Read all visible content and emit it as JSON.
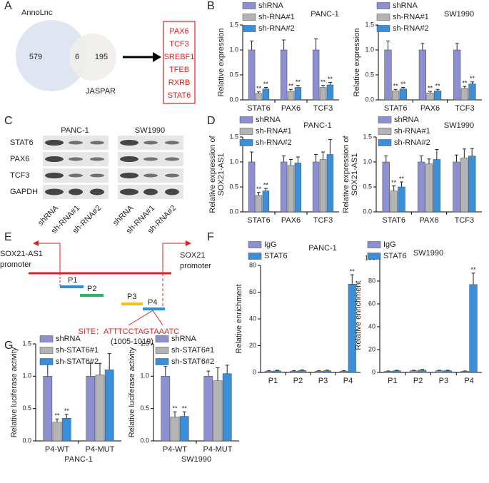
{
  "panel_labels": [
    "A",
    "B",
    "C",
    "D",
    "E",
    "F",
    "G"
  ],
  "venn": {
    "left": "AnnoLnc",
    "right": "JASPAR",
    "left_only": 579,
    "both": 6,
    "right_only": 195,
    "genes": [
      "PAX6",
      "TCF3",
      "SREBF1",
      "TFEB",
      "RXRB",
      "STAT6"
    ]
  },
  "blot": {
    "cells": [
      "PANC-1",
      "SW1990"
    ],
    "proteins": [
      "STAT6",
      "PAX6",
      "TCF3",
      "GAPDH"
    ],
    "lanes": [
      "shRNA",
      "sh-RNA#1",
      "sh-RNA#2"
    ]
  },
  "diagram": {
    "left_promoter": [
      "SOX21-AS1",
      "promoter"
    ],
    "right_promoter": [
      "SOX21",
      "promoter"
    ],
    "fragments": [
      "P1",
      "P2",
      "P3",
      "P4"
    ],
    "site_label": "SITE：",
    "site": "ATTTCCTAGTAAATC",
    "site_range": "(1005-1019)"
  },
  "chart_data": [
    {
      "type": "bar",
      "title": "PANC-1",
      "ylabel": [
        "Relative expression"
      ],
      "categories": [
        "STAT6",
        "PAX6",
        "TCF3"
      ],
      "series": [
        {
          "name": "shRNA",
          "color": "#8c8fd0",
          "values": [
            1.0,
            1.0,
            1.0
          ],
          "errors": [
            0.18,
            0.2,
            0.22
          ],
          "significance": [
            null,
            null,
            null
          ]
        },
        {
          "name": "sh-RNA#1",
          "color": "#b4b4b4",
          "values": [
            0.13,
            0.17,
            0.25
          ],
          "errors": [
            0.03,
            0.04,
            0.04
          ],
          "significance": [
            "**",
            "**",
            "**"
          ]
        },
        {
          "name": "sh-RNA#2",
          "color": "#3a8fd8",
          "values": [
            0.22,
            0.25,
            0.3
          ],
          "errors": [
            0.03,
            0.04,
            0.05
          ],
          "significance": [
            "**",
            "**",
            "**"
          ]
        }
      ],
      "ylim": [
        0,
        1.5
      ],
      "yticks": [
        {
          "value": 0,
          "label": "0.0"
        },
        {
          "value": 0.5,
          "label": "0.5"
        },
        {
          "value": 1.0,
          "label": "1.0"
        },
        {
          "value": 1.5,
          "label": "1.5"
        }
      ]
    },
    {
      "type": "bar",
      "title": "SW1990",
      "ylabel": [
        "Relative expression"
      ],
      "categories": [
        "STAT6",
        "PAX6",
        "TCF3"
      ],
      "series": [
        {
          "name": "shRNA",
          "color": "#8c8fd0",
          "values": [
            1.0,
            1.0,
            1.0
          ],
          "errors": [
            0.18,
            0.13,
            0.13
          ],
          "significance": [
            null,
            null,
            null
          ]
        },
        {
          "name": "sh-RNA#1",
          "color": "#b4b4b4",
          "values": [
            0.18,
            0.14,
            0.23
          ],
          "errors": [
            0.03,
            0.03,
            0.04
          ],
          "significance": [
            "**",
            "**",
            "**"
          ]
        },
        {
          "name": "sh-RNA#2",
          "color": "#3a8fd8",
          "values": [
            0.22,
            0.18,
            0.32
          ],
          "errors": [
            0.03,
            0.03,
            0.04
          ],
          "significance": [
            "**",
            "**",
            "**"
          ]
        }
      ],
      "ylim": [
        0,
        1.5
      ],
      "yticks": [
        {
          "value": 0,
          "label": "0.0"
        },
        {
          "value": 0.5,
          "label": "0.5"
        },
        {
          "value": 1.0,
          "label": "1.0"
        },
        {
          "value": 1.5,
          "label": "1.5"
        }
      ]
    },
    {
      "type": "bar",
      "title": "PANC-1",
      "ylabel": [
        "Relative expression of",
        "SOX21-AS1"
      ],
      "categories": [
        "STAT6",
        "PAX6",
        "TCF3"
      ],
      "series": [
        {
          "name": "shRNA",
          "color": "#8c8fd0",
          "values": [
            1.0,
            1.0,
            1.0
          ],
          "errors": [
            0.2,
            0.12,
            0.15
          ],
          "significance": [
            null,
            null,
            null
          ]
        },
        {
          "name": "sh-RNA#1",
          "color": "#b4b4b4",
          "values": [
            0.33,
            0.93,
            1.05
          ],
          "errors": [
            0.06,
            0.12,
            0.15
          ],
          "significance": [
            "**",
            null,
            null
          ]
        },
        {
          "name": "sh-RNA#2",
          "color": "#3a8fd8",
          "values": [
            0.42,
            0.98,
            1.15
          ],
          "errors": [
            0.05,
            0.12,
            0.3
          ],
          "significance": [
            "**",
            null,
            null
          ]
        }
      ],
      "ylim": [
        0,
        1.5
      ],
      "yticks": [
        {
          "value": 0,
          "label": "0.0"
        },
        {
          "value": 0.5,
          "label": "0.5"
        },
        {
          "value": 1.0,
          "label": "1.0"
        },
        {
          "value": 1.5,
          "label": "1.5"
        }
      ]
    },
    {
      "type": "bar",
      "title": "SW1990",
      "ylabel": [
        "Relative expression of",
        "SOX21-AS1"
      ],
      "categories": [
        "STAT6",
        "PAX6",
        "TCF3"
      ],
      "series": [
        {
          "name": "shRNA",
          "color": "#8c8fd0",
          "values": [
            1.0,
            1.0,
            1.0
          ],
          "errors": [
            0.12,
            0.12,
            0.14
          ],
          "significance": [
            null,
            null,
            null
          ]
        },
        {
          "name": "sh-RNA#1",
          "color": "#b4b4b4",
          "values": [
            0.42,
            0.96,
            1.08
          ],
          "errors": [
            0.1,
            0.1,
            0.18
          ],
          "significance": [
            "**",
            null,
            null
          ]
        },
        {
          "name": "sh-RNA#2",
          "color": "#3a8fd8",
          "values": [
            0.5,
            1.05,
            1.12
          ],
          "errors": [
            0.1,
            0.2,
            0.15
          ],
          "significance": [
            "**",
            null,
            null
          ]
        }
      ],
      "ylim": [
        0,
        1.5
      ],
      "yticks": [
        {
          "value": 0,
          "label": "0.0"
        },
        {
          "value": 0.5,
          "label": "0.5"
        },
        {
          "value": 1.0,
          "label": "1.0"
        },
        {
          "value": 1.5,
          "label": "1.5"
        }
      ]
    },
    {
      "type": "bar",
      "title": "PANC-1",
      "ylabel": [
        "Relative enrichment"
      ],
      "categories": [
        "P1",
        "P2",
        "P3",
        "P4"
      ],
      "series": [
        {
          "name": "IgG",
          "color": "#8c8fd0",
          "values": [
            1,
            1,
            1,
            1
          ],
          "errors": [
            0.3,
            0.3,
            0.3,
            0.3
          ],
          "significance": [
            null,
            null,
            null,
            null
          ]
        },
        {
          "name": "STAT6",
          "color": "#3a8fd8",
          "values": [
            1.2,
            1.5,
            1.3,
            66
          ],
          "errors": [
            0.4,
            0.4,
            0.4,
            7
          ],
          "significance": [
            null,
            null,
            null,
            "**"
          ]
        }
      ],
      "ylim": [
        0,
        80
      ],
      "yticks": [
        0,
        20,
        40,
        60,
        80
      ]
    },
    {
      "type": "bar",
      "title": "SW1990",
      "ylabel": [
        "Relative enrichment"
      ],
      "categories": [
        "P1",
        "P2",
        "P3",
        "P4"
      ],
      "series": [
        {
          "name": "IgG",
          "color": "#8c8fd0",
          "values": [
            1,
            1.5,
            1.5,
            1
          ],
          "errors": [
            0.3,
            0.4,
            0.4,
            0.3
          ],
          "significance": [
            null,
            null,
            null,
            null
          ]
        },
        {
          "name": "STAT6",
          "color": "#3a8fd8",
          "values": [
            1.5,
            2,
            1.5,
            77
          ],
          "errors": [
            0.4,
            0.5,
            0.4,
            10
          ],
          "significance": [
            null,
            null,
            null,
            "**"
          ]
        }
      ],
      "ylim": [
        0,
        100
      ],
      "yticks": [
        0,
        20,
        40,
        60,
        80,
        100
      ]
    },
    {
      "type": "bar",
      "xlabel": "PANC-1",
      "ylabel": [
        "Relative luciferase activity"
      ],
      "categories": [
        "P4-WT",
        "P4-MUT"
      ],
      "series": [
        {
          "name": "shRNA",
          "color": "#8c8fd0",
          "values": [
            1.0,
            1.0
          ],
          "errors": [
            0.22,
            0.2
          ],
          "significance": [
            null,
            null
          ]
        },
        {
          "name": "sh-STAT6#1",
          "color": "#b4b4b4",
          "values": [
            0.29,
            1.02
          ],
          "errors": [
            0.05,
            0.18
          ],
          "significance": [
            "**",
            null
          ]
        },
        {
          "name": "sh-STAT6#2",
          "color": "#3a8fd8",
          "values": [
            0.35,
            1.1
          ],
          "errors": [
            0.06,
            0.25
          ],
          "significance": [
            "**",
            null
          ]
        }
      ],
      "ylim": [
        0,
        1.5
      ],
      "yticks": [
        {
          "value": 0,
          "label": "0.0"
        },
        {
          "value": 0.5,
          "label": "0.5"
        },
        {
          "value": 1.0,
          "label": "1.0"
        },
        {
          "value": 1.5,
          "label": "1.5"
        }
      ]
    },
    {
      "type": "bar",
      "xlabel": "SW1990",
      "ylabel": [
        "Relative luciferase activity"
      ],
      "categories": [
        "P4-WT",
        "P4-MUT"
      ],
      "series": [
        {
          "name": "shRNA",
          "color": "#8c8fd0",
          "values": [
            1.0,
            1.0
          ],
          "errors": [
            0.15,
            0.08
          ],
          "significance": [
            null,
            null
          ]
        },
        {
          "name": "sh-STAT6#1",
          "color": "#b4b4b4",
          "values": [
            0.37,
            0.93
          ],
          "errors": [
            0.08,
            0.2
          ],
          "significance": [
            "**",
            null
          ]
        },
        {
          "name": "sh-STAT6#2",
          "color": "#3a8fd8",
          "values": [
            0.38,
            1.04
          ],
          "errors": [
            0.07,
            0.13
          ],
          "significance": [
            "**",
            null
          ]
        }
      ],
      "ylim": [
        0,
        1.5
      ],
      "yticks": [
        {
          "value": 0,
          "label": "0.0"
        },
        {
          "value": 0.5,
          "label": "0.5"
        },
        {
          "value": 1.0,
          "label": "1.0"
        },
        {
          "value": 1.5,
          "label": "1.5"
        }
      ]
    }
  ]
}
